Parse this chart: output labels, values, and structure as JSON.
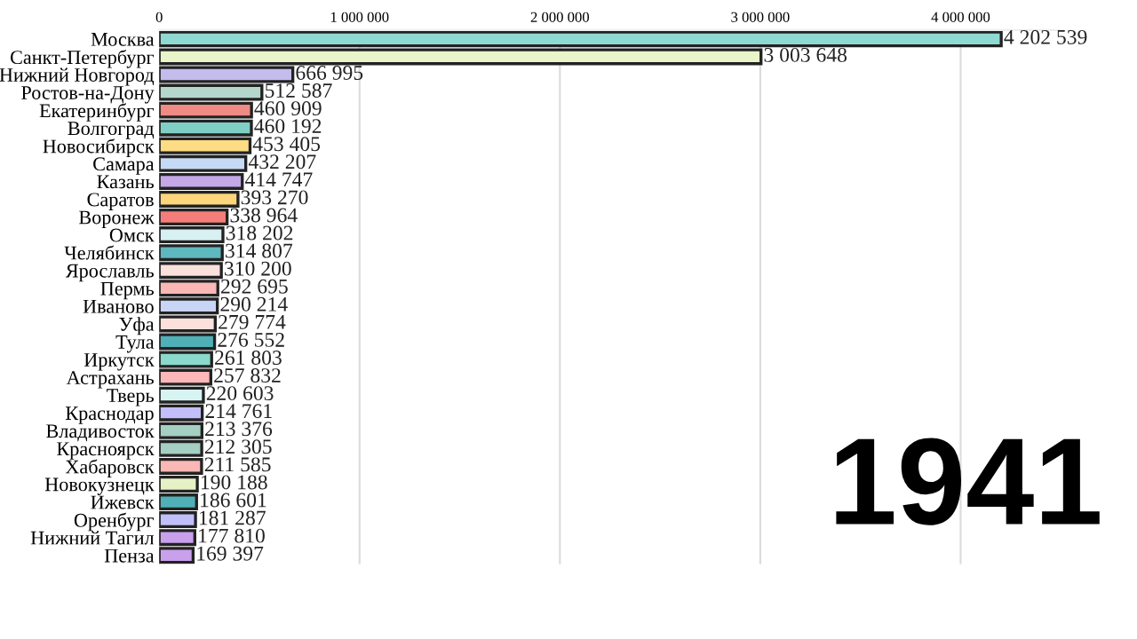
{
  "chart_data": {
    "type": "bar",
    "orientation": "horizontal",
    "categories": [
      "Москва",
      "Санкт-Петербург",
      "Нижний Новгород",
      "Ростов-на-Дону",
      "Екатеринбург",
      "Волгоград",
      "Новосибирск",
      "Самара",
      "Казань",
      "Саратов",
      "Воронеж",
      "Омск",
      "Челябинск",
      "Ярославль",
      "Пермь",
      "Иваново",
      "Уфа",
      "Тула",
      "Иркутск",
      "Астрахань",
      "Тверь",
      "Краснодар",
      "Владивосток",
      "Красноярск",
      "Хабаровск",
      "Новокузнецк",
      "Ижевск",
      "Оренбург",
      "Нижний Тагил",
      "Пенза"
    ],
    "values": [
      4202539,
      3003648,
      666995,
      512587,
      460909,
      460192,
      453405,
      432207,
      414747,
      393270,
      338964,
      318202,
      314807,
      310200,
      292695,
      290214,
      279774,
      276552,
      261803,
      257832,
      220603,
      214761,
      213376,
      212305,
      211585,
      190188,
      186601,
      181287,
      177810,
      169397
    ],
    "value_labels": [
      "4 202 539",
      "3 003 648",
      "666 995",
      "512 587",
      "460 909",
      "460 192",
      "453 405",
      "432 207",
      "414 747",
      "393 270",
      "338 964",
      "318 202",
      "314 807",
      "310 200",
      "292 695",
      "290 214",
      "279 774",
      "276 552",
      "261 803",
      "257 832",
      "220 603",
      "214 761",
      "213 376",
      "212 305",
      "211 585",
      "190 188",
      "186 601",
      "181 287",
      "177 810",
      "169 397"
    ],
    "colors": [
      "#8fd9d3",
      "#eaf5c9",
      "#c3bcec",
      "#b5d6cc",
      "#f08a84",
      "#7fcfc4",
      "#fddc84",
      "#c6daf5",
      "#c5a8e8",
      "#fbd67a",
      "#f47d7a",
      "#d7f0f2",
      "#5fb8be",
      "#fbe1dc",
      "#f9b7b5",
      "#c9d5f6",
      "#fbe1dc",
      "#4fb0b8",
      "#8ad9cc",
      "#fbb7b9",
      "#d7f4f3",
      "#c1befa",
      "#a5cfc3",
      "#a5cfc3",
      "#f9b7b5",
      "#e6f2c6",
      "#4fb0b8",
      "#c1befa",
      "#c9a0ec",
      "#c9a0ec"
    ],
    "xlim": [
      0,
      4500000
    ],
    "xticks": [
      0,
      {
        "value": 1000000,
        "label": "1 000 000"
      },
      {
        "value": 2000000,
        "label": "2 000 000"
      },
      {
        "value": 3000000,
        "label": "3 000 000"
      },
      {
        "value": 4000000,
        "label": "4 000 000"
      }
    ],
    "grid": "x",
    "annotations": [
      "1941"
    ]
  }
}
